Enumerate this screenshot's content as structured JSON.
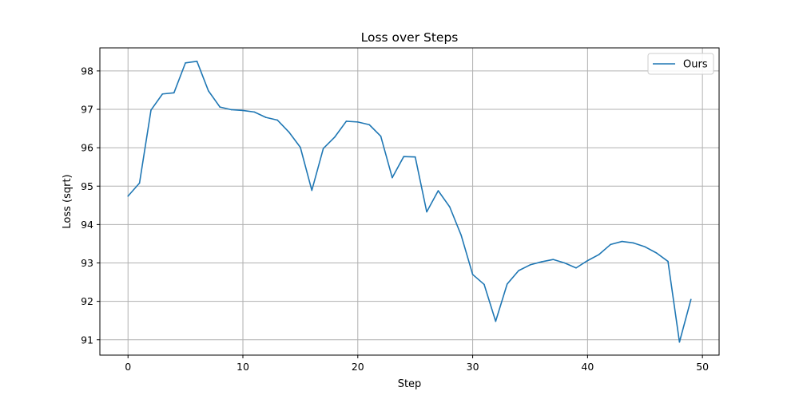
{
  "chart_data": {
    "type": "line",
    "title": "Loss over Steps",
    "xlabel": "Step",
    "ylabel": "Loss (sqrt)",
    "xlim": [
      -2.45,
      51.45
    ],
    "ylim": [
      90.6,
      98.6
    ],
    "xticks": [
      0,
      10,
      20,
      30,
      40,
      50
    ],
    "yticks": [
      91,
      92,
      93,
      94,
      95,
      96,
      97,
      98
    ],
    "grid": true,
    "legend_position": "top-right",
    "series": [
      {
        "name": "Ours",
        "color": "#1f77b4",
        "x": [
          0,
          1,
          2,
          3,
          4,
          5,
          6,
          7,
          8,
          9,
          10,
          11,
          12,
          13,
          14,
          15,
          16,
          17,
          18,
          19,
          20,
          21,
          22,
          23,
          24,
          25,
          26,
          27,
          28,
          29,
          30,
          31,
          32,
          33,
          34,
          35,
          36,
          37,
          38,
          39,
          40,
          41,
          42,
          43,
          44,
          45,
          46,
          47,
          48,
          49
        ],
        "y": [
          94.74,
          95.08,
          96.98,
          97.4,
          97.43,
          98.21,
          98.25,
          97.48,
          97.06,
          96.99,
          96.97,
          96.93,
          96.79,
          96.72,
          96.41,
          96.01,
          94.89,
          95.98,
          96.28,
          96.69,
          96.67,
          96.6,
          96.3,
          95.22,
          95.77,
          95.76,
          94.33,
          94.88,
          94.46,
          93.72,
          92.7,
          92.44,
          91.48,
          92.45,
          92.8,
          92.95,
          93.03,
          93.09,
          93.0,
          92.87,
          93.06,
          93.22,
          93.48,
          93.56,
          93.52,
          93.42,
          93.26,
          93.04,
          90.94,
          92.05
        ]
      }
    ]
  }
}
